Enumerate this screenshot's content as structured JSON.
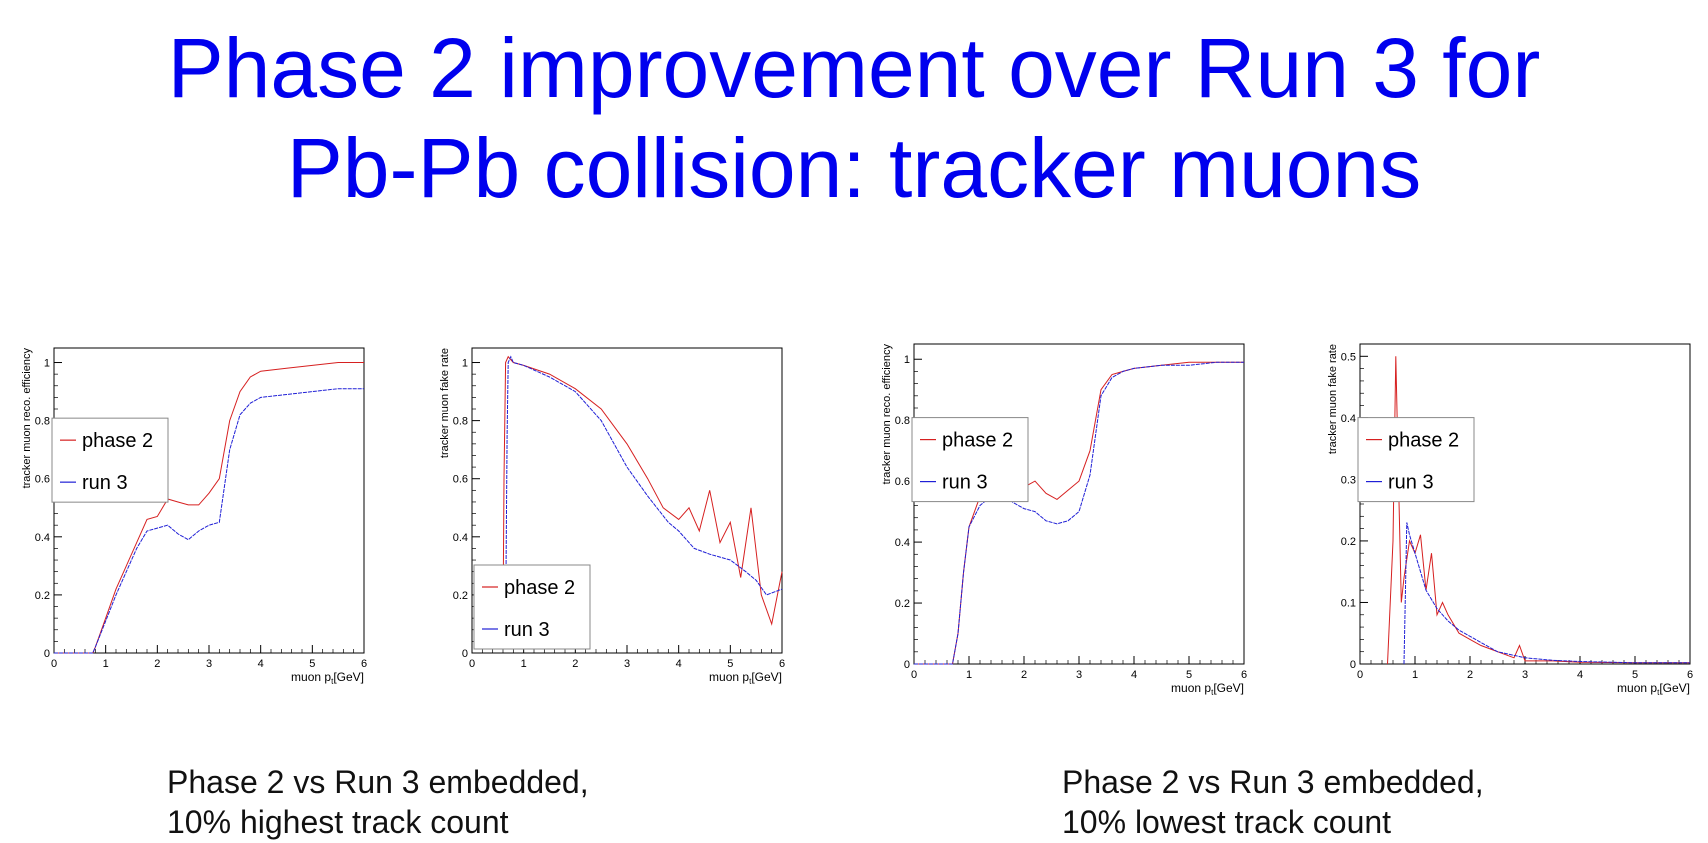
{
  "title": {
    "line1": "Phase 2 improvement over Run 3 for",
    "line2": "Pb-Pb collision: tracker muons"
  },
  "captions": [
    {
      "line1": "Phase 2 vs Run 3 embedded,",
      "line2": "10% highest track count"
    },
    {
      "line1": "Phase 2 vs Run 3 embedded,",
      "line2": "10% lowest track count"
    }
  ],
  "colors": {
    "phase2": "#d62020",
    "run3": "#2020d6"
  },
  "chart_data": [
    {
      "type": "line",
      "ylabel": "tracker muon reco. efficiency",
      "xlabel_main": "muon p",
      "xlabel_sub": "t",
      "xlabel_tail": "[GeV]",
      "xlim": [
        0,
        6
      ],
      "ylim": [
        0,
        1.05
      ],
      "xticks": [
        "0",
        "1",
        "2",
        "3",
        "4",
        "5",
        "6"
      ],
      "yticks": [
        "0",
        "0.2",
        "0.4",
        "0.6",
        "0.8",
        "1"
      ],
      "legend": "left-middle",
      "series": [
        {
          "name": "phase 2",
          "color": "#d62020",
          "x": [
            0,
            0.75,
            0.8,
            1.0,
            1.2,
            1.4,
            1.6,
            1.8,
            2.0,
            2.2,
            2.4,
            2.6,
            2.8,
            3.0,
            3.2,
            3.4,
            3.6,
            3.8,
            4.0,
            4.5,
            5.0,
            5.5,
            6.0
          ],
          "y": [
            0,
            0,
            0.02,
            0.12,
            0.22,
            0.3,
            0.38,
            0.46,
            0.47,
            0.53,
            0.52,
            0.51,
            0.51,
            0.55,
            0.6,
            0.8,
            0.9,
            0.95,
            0.97,
            0.98,
            0.99,
            1.0,
            1.0
          ]
        },
        {
          "name": "run 3",
          "color": "#2020d6",
          "x": [
            0,
            0.75,
            0.8,
            1.0,
            1.2,
            1.4,
            1.6,
            1.8,
            2.0,
            2.2,
            2.4,
            2.6,
            2.8,
            3.0,
            3.2,
            3.4,
            3.6,
            3.8,
            4.0,
            4.5,
            5.0,
            5.5,
            6.0
          ],
          "y": [
            0,
            0,
            0.02,
            0.11,
            0.2,
            0.28,
            0.36,
            0.42,
            0.43,
            0.44,
            0.41,
            0.39,
            0.42,
            0.44,
            0.45,
            0.7,
            0.82,
            0.86,
            0.88,
            0.89,
            0.9,
            0.91,
            0.91
          ]
        }
      ]
    },
    {
      "type": "line",
      "ylabel": "tracker muon fake rate",
      "xlabel_main": "muon p",
      "xlabel_sub": "t",
      "xlabel_tail": "[GeV]",
      "xlim": [
        0,
        6
      ],
      "ylim": [
        0,
        1.05
      ],
      "xticks": [
        "0",
        "1",
        "2",
        "3",
        "4",
        "5",
        "6"
      ],
      "yticks": [
        "0",
        "0.2",
        "0.4",
        "0.6",
        "0.8",
        "1"
      ],
      "legend": "bottom-left",
      "series": [
        {
          "name": "phase 2",
          "color": "#d62020",
          "x": [
            0.6,
            0.62,
            0.65,
            0.7,
            0.8,
            1.0,
            1.5,
            2.0,
            2.5,
            3.0,
            3.4,
            3.7,
            4.0,
            4.2,
            4.4,
            4.6,
            4.8,
            5.0,
            5.2,
            5.4,
            5.6,
            5.8,
            6.0
          ],
          "y": [
            0.1,
            0.6,
            1.0,
            1.02,
            1.0,
            0.99,
            0.96,
            0.91,
            0.84,
            0.72,
            0.6,
            0.5,
            0.46,
            0.5,
            0.42,
            0.56,
            0.38,
            0.45,
            0.26,
            0.5,
            0.2,
            0.1,
            0.28
          ]
        },
        {
          "name": "run 3",
          "color": "#2020d6",
          "x": [
            0.65,
            0.68,
            0.7,
            0.75,
            0.8,
            1.0,
            1.5,
            2.0,
            2.5,
            3.0,
            3.4,
            3.8,
            4.0,
            4.3,
            4.6,
            5.0,
            5.3,
            5.5,
            5.7,
            6.0
          ],
          "y": [
            0.1,
            0.75,
            1.0,
            1.02,
            1.0,
            0.99,
            0.95,
            0.9,
            0.8,
            0.64,
            0.54,
            0.45,
            0.42,
            0.36,
            0.34,
            0.32,
            0.28,
            0.25,
            0.2,
            0.22
          ]
        }
      ]
    },
    {
      "type": "line",
      "ylabel": "tracker muon reco. efficiency",
      "xlabel_main": "muon p",
      "xlabel_sub": "t",
      "xlabel_tail": "[GeV]",
      "xlim": [
        0,
        6
      ],
      "ylim": [
        0,
        1.05
      ],
      "xticks": [
        "0",
        "1",
        "2",
        "3",
        "4",
        "5",
        "6"
      ],
      "yticks": [
        "0",
        "0.2",
        "0.4",
        "0.6",
        "0.8",
        "1"
      ],
      "legend": "left-middle",
      "series": [
        {
          "name": "phase 2",
          "color": "#d62020",
          "x": [
            0,
            0.7,
            0.8,
            0.9,
            1.0,
            1.2,
            1.4,
            1.6,
            1.8,
            2.0,
            2.2,
            2.4,
            2.6,
            2.8,
            3.0,
            3.2,
            3.4,
            3.6,
            3.8,
            4.0,
            4.5,
            5.0,
            5.5,
            6.0
          ],
          "y": [
            0,
            0,
            0.1,
            0.3,
            0.45,
            0.55,
            0.6,
            0.63,
            0.6,
            0.58,
            0.6,
            0.56,
            0.54,
            0.57,
            0.6,
            0.7,
            0.9,
            0.95,
            0.96,
            0.97,
            0.98,
            0.99,
            0.99,
            0.99
          ]
        },
        {
          "name": "run 3",
          "color": "#2020d6",
          "x": [
            0,
            0.7,
            0.8,
            0.9,
            1.0,
            1.2,
            1.4,
            1.6,
            1.8,
            2.0,
            2.2,
            2.4,
            2.6,
            2.8,
            3.0,
            3.2,
            3.4,
            3.6,
            3.8,
            4.0,
            4.5,
            5.0,
            5.5,
            6.0
          ],
          "y": [
            0,
            0,
            0.1,
            0.3,
            0.45,
            0.52,
            0.55,
            0.57,
            0.53,
            0.51,
            0.5,
            0.47,
            0.46,
            0.47,
            0.5,
            0.62,
            0.88,
            0.94,
            0.96,
            0.97,
            0.98,
            0.98,
            0.99,
            0.99
          ]
        }
      ]
    },
    {
      "type": "line",
      "ylabel": "tracker muon fake rate",
      "xlabel_main": "muon p",
      "xlabel_sub": "t",
      "xlabel_tail": "[GeV]",
      "xlim": [
        0,
        6
      ],
      "ylim": [
        0,
        0.52
      ],
      "xticks": [
        "0",
        "1",
        "2",
        "3",
        "4",
        "5",
        "6"
      ],
      "yticks": [
        "0",
        "0.1",
        "0.2",
        "0.3",
        "0.4",
        "0.5"
      ],
      "legend": "left-middle",
      "series": [
        {
          "name": "phase 2",
          "color": "#d62020",
          "x": [
            0.5,
            0.6,
            0.65,
            0.7,
            0.75,
            0.8,
            0.9,
            1.0,
            1.1,
            1.2,
            1.3,
            1.4,
            1.5,
            1.6,
            1.8,
            2.0,
            2.2,
            2.5,
            2.8,
            2.9,
            3.0,
            3.5,
            4.0,
            5.0,
            6.0
          ],
          "y": [
            0,
            0.2,
            0.5,
            0.3,
            0.1,
            0.14,
            0.2,
            0.18,
            0.21,
            0.12,
            0.18,
            0.08,
            0.1,
            0.08,
            0.05,
            0.04,
            0.03,
            0.02,
            0.01,
            0.03,
            0.005,
            0.005,
            0.003,
            0.002,
            0.002
          ]
        },
        {
          "name": "run 3",
          "color": "#2020d6",
          "x": [
            0.8,
            0.85,
            0.9,
            1.0,
            1.1,
            1.2,
            1.4,
            1.6,
            1.8,
            2.0,
            2.2,
            2.5,
            3.0,
            3.5,
            4.0,
            5.0,
            6.0
          ],
          "y": [
            0,
            0.23,
            0.21,
            0.18,
            0.15,
            0.12,
            0.09,
            0.07,
            0.055,
            0.045,
            0.035,
            0.02,
            0.01,
            0.006,
            0.004,
            0.002,
            0.002
          ]
        }
      ]
    }
  ]
}
